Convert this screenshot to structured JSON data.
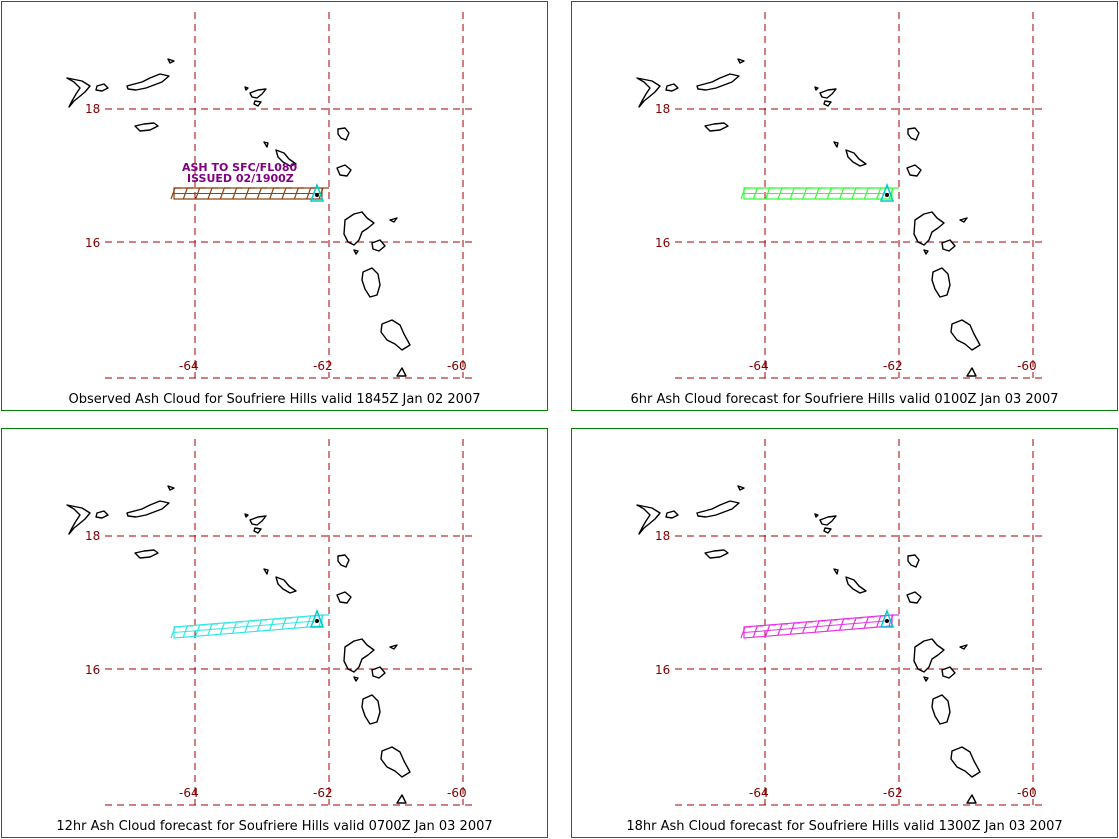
{
  "map": {
    "lat_labels": [
      "18",
      "16"
    ],
    "lon_labels": [
      "-64",
      "-62",
      "-60"
    ]
  },
  "panels": [
    {
      "caption": "Observed Ash Cloud for Soufriere  Hills valid 1845Z Jan 02 2007",
      "cloud_color": "#8B4513",
      "annotation": [
        "ASH TO SFC/FL080",
        "ISSUED 02/1900Z"
      ]
    },
    {
      "caption": "6hr Ash Cloud forecast for Soufriere  Hills valid 0100Z Jan 03 2007",
      "cloud_color": "#33ff33"
    },
    {
      "caption": "12hr Ash Cloud forecast for Soufriere  Hills valid 0700Z Jan 03 2007",
      "cloud_color": "#33e6e6"
    },
    {
      "caption": "18hr Ash Cloud forecast for Soufriere  Hills valid 1300Z Jan 03 2007",
      "cloud_color": "#e633e6"
    }
  ],
  "colors": {
    "panel_border": "#008000",
    "grid": "#a00000",
    "volcano_marker": "#00cccc"
  }
}
